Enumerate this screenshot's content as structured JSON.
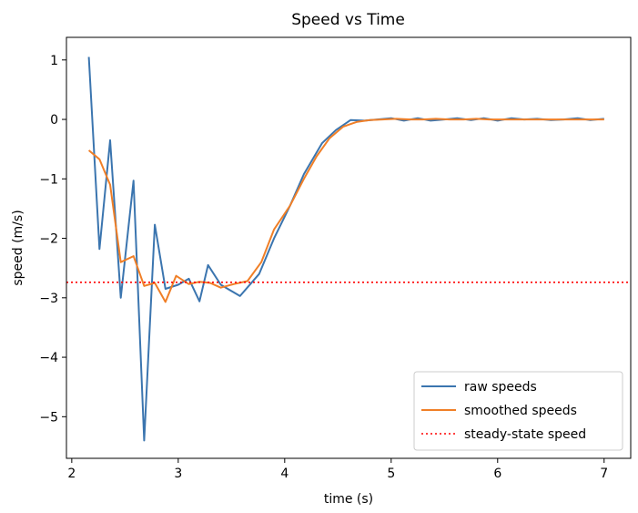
{
  "chart_data": {
    "type": "line",
    "title": "Speed vs Time",
    "xlabel": "time (s)",
    "ylabel": "speed (m/s)",
    "xlim": [
      1.95,
      7.25
    ],
    "ylim": [
      -5.7,
      1.38
    ],
    "xticks": [
      2,
      3,
      4,
      5,
      6,
      7
    ],
    "yticks": [
      1,
      0,
      -1,
      -2,
      -3,
      -4,
      -5
    ],
    "ytick_labels": [
      "1",
      "0",
      "−1",
      "−2",
      "−3",
      "−4",
      "−5"
    ],
    "grid": false,
    "legend_position": "lower-right",
    "series": [
      {
        "name": "raw speeds",
        "color": "#3b75af",
        "style": "solid",
        "x": [
          2.16,
          2.26,
          2.36,
          2.46,
          2.58,
          2.68,
          2.78,
          2.88,
          3.0,
          3.1,
          3.2,
          3.28,
          3.4,
          3.58,
          3.76,
          3.9,
          4.05,
          4.18,
          4.35,
          4.48,
          4.62,
          4.75,
          4.87,
          5.0,
          5.12,
          5.25,
          5.37,
          5.5,
          5.62,
          5.75,
          5.87,
          6.0,
          6.13,
          6.25,
          6.37,
          6.5,
          6.62,
          6.75,
          6.87,
          7.0
        ],
        "y": [
          1.05,
          -2.18,
          -0.35,
          -3.0,
          -1.03,
          -5.4,
          -1.77,
          -2.85,
          -2.78,
          -2.68,
          -3.06,
          -2.45,
          -2.78,
          -2.97,
          -2.6,
          -2.0,
          -1.45,
          -0.92,
          -0.4,
          -0.18,
          -0.01,
          -0.02,
          0.0,
          0.02,
          -0.02,
          0.02,
          -0.02,
          0.0,
          0.02,
          -0.01,
          0.02,
          -0.02,
          0.02,
          0.0,
          0.01,
          -0.01,
          0.0,
          0.02,
          -0.01,
          0.01
        ]
      },
      {
        "name": "smoothed speeds",
        "color": "#f07f27",
        "style": "solid",
        "x": [
          2.16,
          2.26,
          2.36,
          2.46,
          2.58,
          2.68,
          2.78,
          2.88,
          2.98,
          3.1,
          3.2,
          3.3,
          3.4,
          3.52,
          3.65,
          3.78,
          3.9,
          4.05,
          4.18,
          4.3,
          4.42,
          4.55,
          4.68,
          4.8,
          4.92,
          5.05,
          5.18,
          5.3,
          5.42,
          5.55,
          5.68,
          5.8,
          5.92,
          6.05,
          6.18,
          6.3,
          6.42,
          6.55,
          6.68,
          6.8,
          6.92,
          7.0
        ],
        "y": [
          -0.52,
          -0.67,
          -1.1,
          -2.4,
          -2.3,
          -2.8,
          -2.75,
          -3.07,
          -2.63,
          -2.77,
          -2.73,
          -2.75,
          -2.83,
          -2.77,
          -2.72,
          -2.4,
          -1.85,
          -1.45,
          -1.0,
          -0.62,
          -0.32,
          -0.12,
          -0.04,
          -0.01,
          0.0,
          0.01,
          0.0,
          0.0,
          0.01,
          0.0,
          0.0,
          0.01,
          0.0,
          0.0,
          0.0,
          0.0,
          0.0,
          0.0,
          0.0,
          0.0,
          0.0,
          0.0
        ]
      },
      {
        "name": "steady-state speed",
        "color": "#ff0000",
        "style": "dotted",
        "y_constant": -2.74
      }
    ]
  }
}
